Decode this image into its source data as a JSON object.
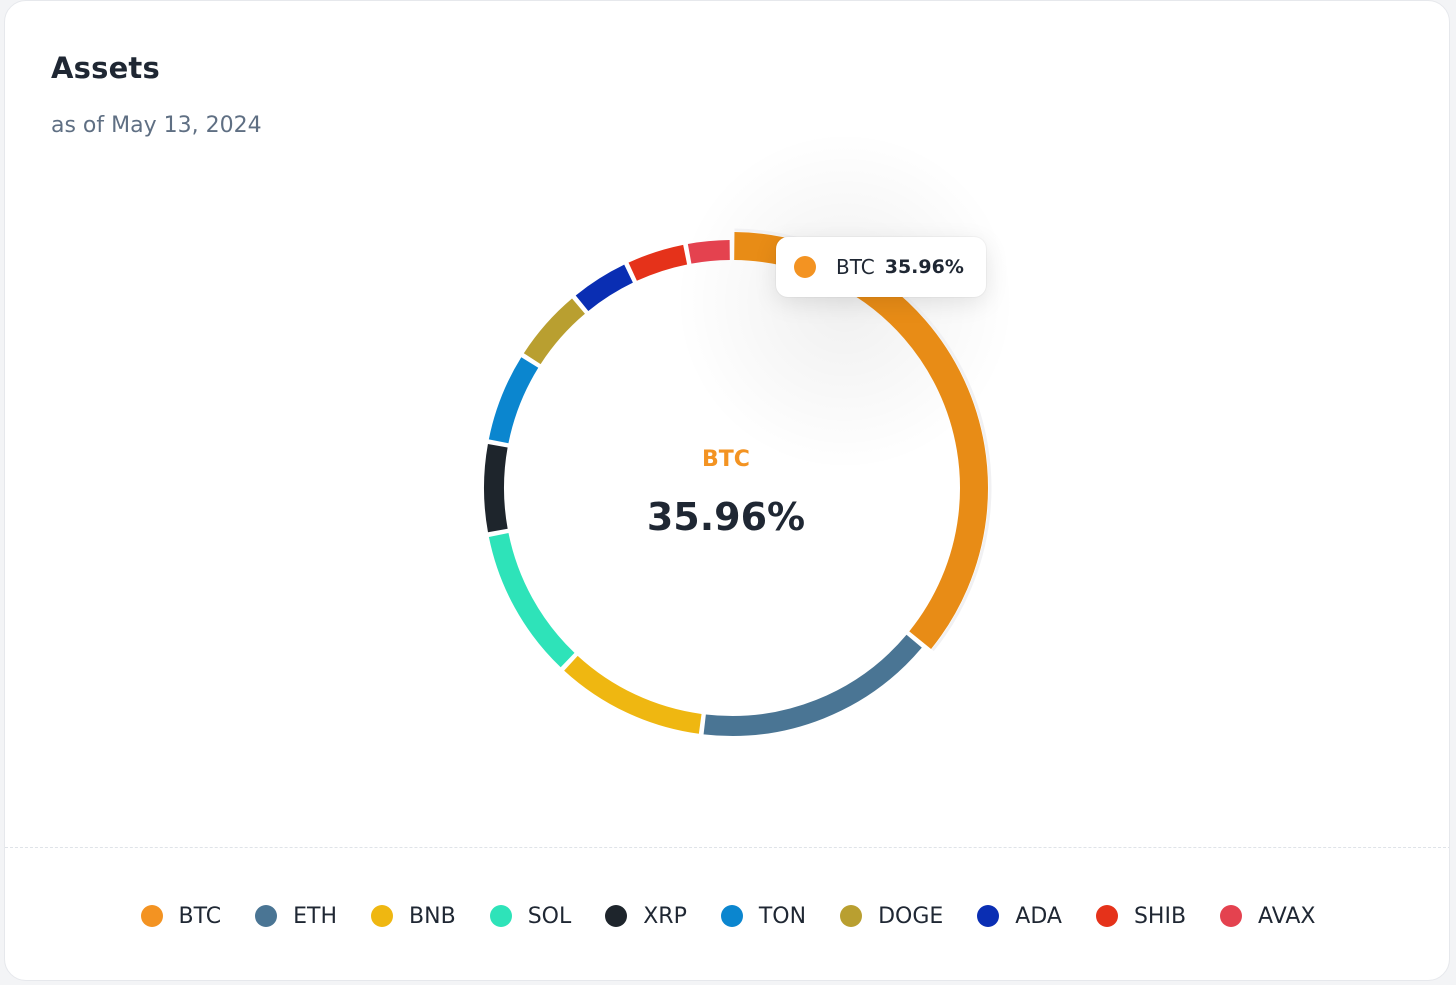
{
  "header": {
    "title": "Assets",
    "subtitle": "as of May 13, 2024"
  },
  "tooltip": {
    "name": "BTC",
    "value": "35.96%",
    "color": "#f39322"
  },
  "center": {
    "name": "BTC",
    "value": "35.96%",
    "color": "#f39322"
  },
  "chart_data": {
    "type": "pie",
    "variant": "donut",
    "legend_position": "bottom",
    "highlighted": "BTC",
    "series": [
      {
        "name": "BTC",
        "value": 35.96,
        "color": "#e88c16"
      },
      {
        "name": "ETH",
        "value": 16.0,
        "color": "#4a7594"
      },
      {
        "name": "BNB",
        "value": 10.0,
        "color": "#efb711"
      },
      {
        "name": "SOL",
        "value": 10.0,
        "color": "#2ee3b9"
      },
      {
        "name": "XRP",
        "value": 6.0,
        "color": "#1e252c"
      },
      {
        "name": "TON",
        "value": 6.0,
        "color": "#0b86cf"
      },
      {
        "name": "DOGE",
        "value": 5.0,
        "color": "#b99f30"
      },
      {
        "name": "ADA",
        "value": 4.0,
        "color": "#0a2eb3"
      },
      {
        "name": "SHIB",
        "value": 4.0,
        "color": "#e5321a"
      },
      {
        "name": "AVAX",
        "value": 3.0,
        "color": "#e4424f"
      }
    ]
  },
  "legend": [
    {
      "label": "BTC",
      "color": "#f39322"
    },
    {
      "label": "ETH",
      "color": "#4a7594"
    },
    {
      "label": "BNB",
      "color": "#efb711"
    },
    {
      "label": "SOL",
      "color": "#2ee3b9"
    },
    {
      "label": "XRP",
      "color": "#1e252c"
    },
    {
      "label": "TON",
      "color": "#0b86cf"
    },
    {
      "label": "DOGE",
      "color": "#b99f30"
    },
    {
      "label": "ADA",
      "color": "#0a2eb3"
    },
    {
      "label": "SHIB",
      "color": "#e5321a"
    },
    {
      "label": "AVAX",
      "color": "#e4424f"
    }
  ]
}
